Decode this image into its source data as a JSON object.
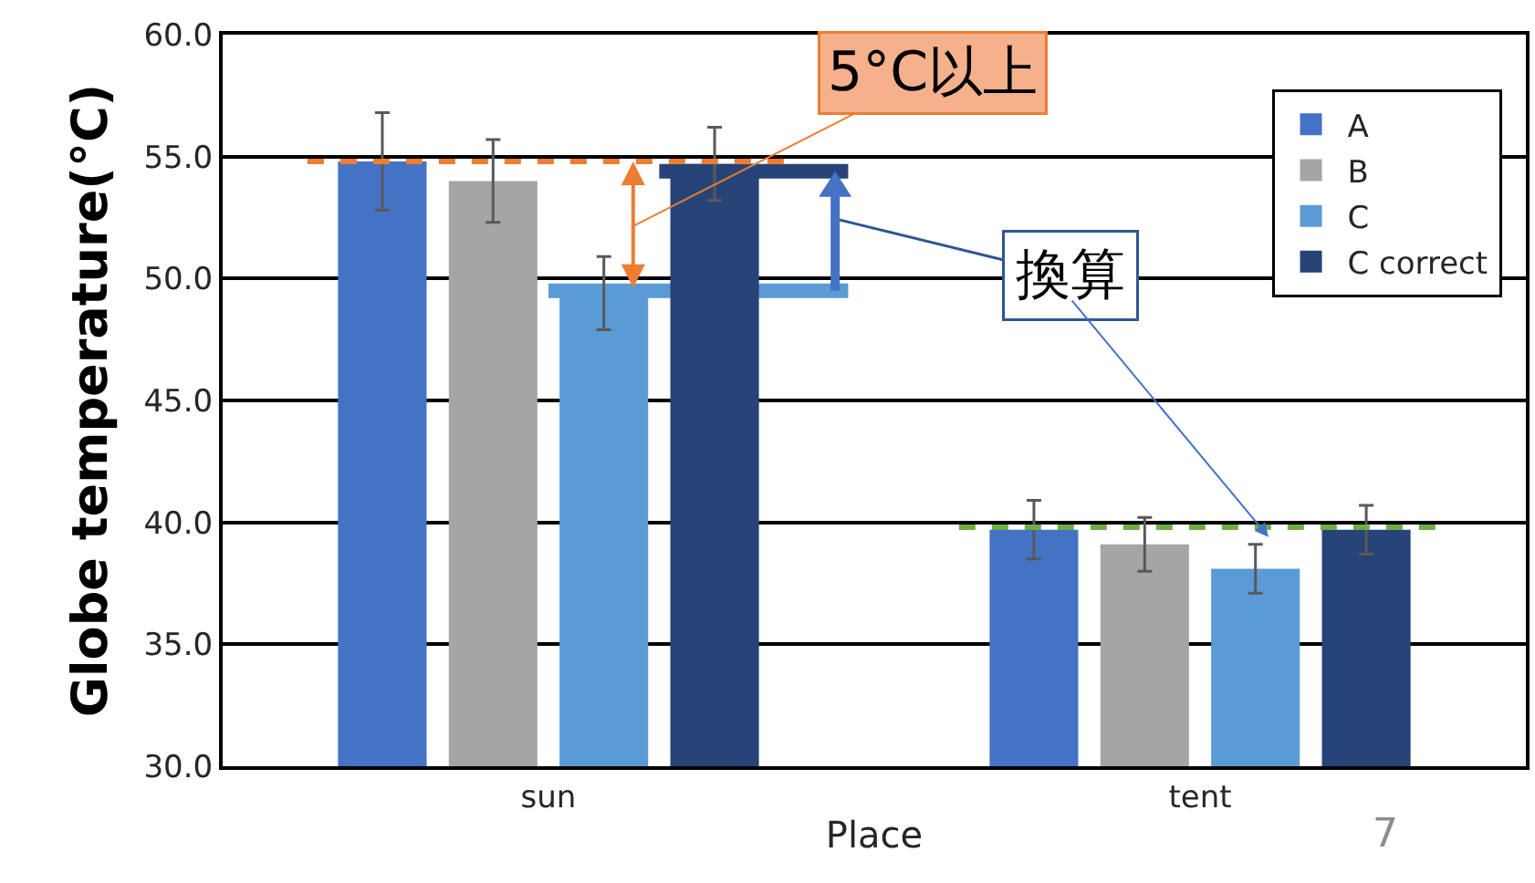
{
  "chart_data": {
    "type": "bar",
    "xlabel": "Place",
    "ylabel": "Globe temperature(°C)",
    "categories": [
      "sun",
      "tent"
    ],
    "series": [
      {
        "name": "A",
        "color": "#4472c4",
        "values": [
          54.8,
          39.7
        ],
        "errors": [
          2.0,
          1.2
        ]
      },
      {
        "name": "B",
        "color": "#a5a5a5",
        "values": [
          54.0,
          39.1
        ],
        "errors": [
          1.7,
          1.1
        ]
      },
      {
        "name": "C",
        "color": "#5b9bd5",
        "values": [
          49.4,
          38.1
        ],
        "errors": [
          1.5,
          1.0
        ]
      },
      {
        "name": "C correct",
        "color": "#264478",
        "values": [
          54.7,
          39.7
        ],
        "errors": [
          1.5,
          1.0
        ]
      }
    ],
    "ylim": [
      30,
      60
    ],
    "yticks": [
      {
        "value": 30,
        "label": "30.0"
      },
      {
        "value": 35,
        "label": "35.0"
      },
      {
        "value": 40,
        "label": "40.0"
      },
      {
        "value": 45,
        "label": "45.0"
      },
      {
        "value": 50,
        "label": "50.0"
      },
      {
        "value": 55,
        "label": "55.0"
      },
      {
        "value": 60,
        "label": "60.0"
      }
    ],
    "ref_lines": [
      {
        "axis": "y",
        "value": 54.8,
        "color": "#ed7d31",
        "line_style": "dashed"
      },
      {
        "axis": "y",
        "value": 39.8,
        "color": "#70ad47",
        "line_style": "dashed"
      },
      {
        "axis": "y",
        "value": 49.5,
        "color": "#5b9bd5",
        "line_style": "solid"
      },
      {
        "axis": "y",
        "value": 54.4,
        "color": "#264478",
        "line_style": "solid"
      }
    ],
    "annotations": [
      "5°C以上",
      "換算",
      "7"
    ],
    "grid": "y",
    "legend": "top right"
  }
}
